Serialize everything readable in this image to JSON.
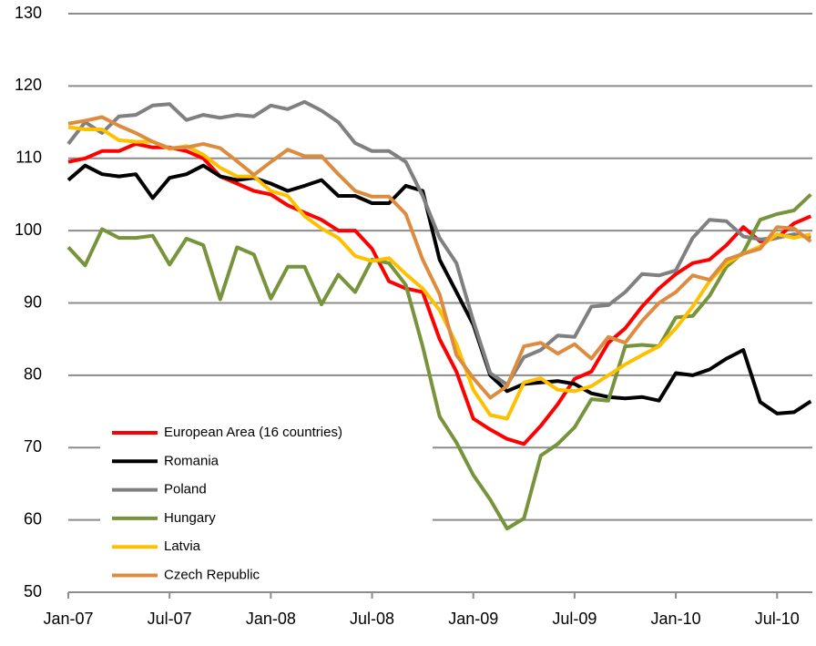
{
  "chart_data": {
    "type": "line",
    "categories": [
      "Jan-07",
      null,
      null,
      null,
      null,
      null,
      "Jul-07",
      null,
      null,
      null,
      null,
      null,
      "Jan-08",
      null,
      null,
      null,
      null,
      null,
      "Jul-08",
      null,
      null,
      null,
      null,
      null,
      "Jan-09",
      null,
      null,
      null,
      null,
      null,
      "Jul-09",
      null,
      null,
      null,
      null,
      null,
      "Jan-10",
      null,
      null,
      null,
      null,
      null,
      "Jul-10",
      null,
      null
    ],
    "ylim": [
      50,
      130
    ],
    "yticks": [
      50,
      60,
      70,
      80,
      90,
      100,
      110,
      120,
      130
    ],
    "grid": true,
    "legend": "lower left",
    "series": [
      {
        "name": "European Area (16 countries)",
        "color": "#ff0000",
        "values": [
          109.5,
          110,
          111,
          111,
          112,
          111.5,
          111.5,
          111,
          110,
          107.5,
          106.5,
          105.5,
          105,
          103.5,
          102.5,
          101.5,
          100,
          100,
          97.5,
          93,
          92,
          91.5,
          85,
          80.5,
          74,
          72.5,
          71.2,
          70.5,
          73,
          76,
          79.5,
          80.5,
          84.5,
          86.5,
          89.5,
          92,
          94,
          95.5,
          96,
          98,
          100.5,
          98.5,
          99,
          101,
          102
        ]
      },
      {
        "name": "Romania",
        "color": "#000000",
        "values": [
          107,
          109,
          107.8,
          107.5,
          107.8,
          104.5,
          107.3,
          107.8,
          109,
          107.5,
          107,
          107.3,
          106.5,
          105.5,
          106.2,
          107,
          104.8,
          104.8,
          103.8,
          103.8,
          106.2,
          105.5,
          96,
          91.5,
          87,
          80,
          77.8,
          78.8,
          79,
          79.2,
          78.8,
          77.5,
          77,
          76.8,
          77,
          76.5,
          80.3,
          80,
          80.8,
          82.3,
          83.5,
          76.3,
          74.7,
          74.9,
          76.4
        ]
      },
      {
        "name": "Poland",
        "color": "#808080",
        "values": [
          112,
          115,
          113.5,
          115.8,
          116,
          117.3,
          117.5,
          115.3,
          116,
          115.6,
          116,
          115.8,
          117.3,
          116.8,
          117.8,
          116.6,
          115,
          112.1,
          111,
          111,
          109.5,
          104.8,
          99,
          95.5,
          87.5,
          80.3,
          78.7,
          82.5,
          83.5,
          85.5,
          85.3,
          89.5,
          89.7,
          91.5,
          94,
          93.8,
          94.5,
          99,
          101.5,
          101.3,
          99.2,
          98.8,
          99,
          99.5,
          99
        ]
      },
      {
        "name": "Hungary",
        "color": "#77933c",
        "values": [
          97.7,
          95.2,
          100.2,
          99,
          99,
          99.3,
          95.3,
          98.9,
          98,
          90.5,
          97.7,
          96.7,
          90.6,
          95,
          95,
          89.8,
          93.9,
          91.5,
          96,
          95.5,
          92.5,
          84,
          74.3,
          70.7,
          66.2,
          62.8,
          58.8,
          60.2,
          68.9,
          70.5,
          72.8,
          76.7,
          76.5,
          84,
          84.2,
          84,
          88,
          88.2,
          91,
          95,
          97,
          101.5,
          102.3,
          102.8,
          105
        ]
      },
      {
        "name": "Latvia",
        "color": "#ffc000",
        "values": [
          114.3,
          114,
          114,
          112.5,
          112.3,
          112.3,
          111.3,
          111.7,
          110.5,
          108.7,
          107.5,
          107.5,
          105.5,
          104.8,
          102,
          100.3,
          99,
          96.5,
          95.8,
          96.2,
          94,
          92,
          89,
          84.3,
          78,
          74.5,
          74,
          79,
          79.6,
          78,
          77.8,
          78.5,
          80,
          81.5,
          82.8,
          84,
          86.5,
          89.5,
          93,
          95.5,
          96.8,
          97.8,
          99.5,
          99,
          99.5
        ]
      },
      {
        "name": "Czech Republic",
        "color": "#dd8c3f",
        "values": [
          114.8,
          115.2,
          115.7,
          114.5,
          113.5,
          112.3,
          111.4,
          111.5,
          112,
          111.4,
          109.6,
          107.7,
          109.5,
          111.2,
          110.3,
          110.3,
          107.8,
          105.5,
          104.7,
          104.7,
          102.3,
          96,
          91.2,
          82.8,
          79.6,
          76.9,
          78.5,
          84,
          84.5,
          83,
          84.3,
          82.3,
          85.3,
          84.5,
          87.5,
          90,
          91.5,
          93.8,
          93.2,
          96,
          96.8,
          97.5,
          100.5,
          100.3,
          98.5
        ]
      }
    ]
  }
}
